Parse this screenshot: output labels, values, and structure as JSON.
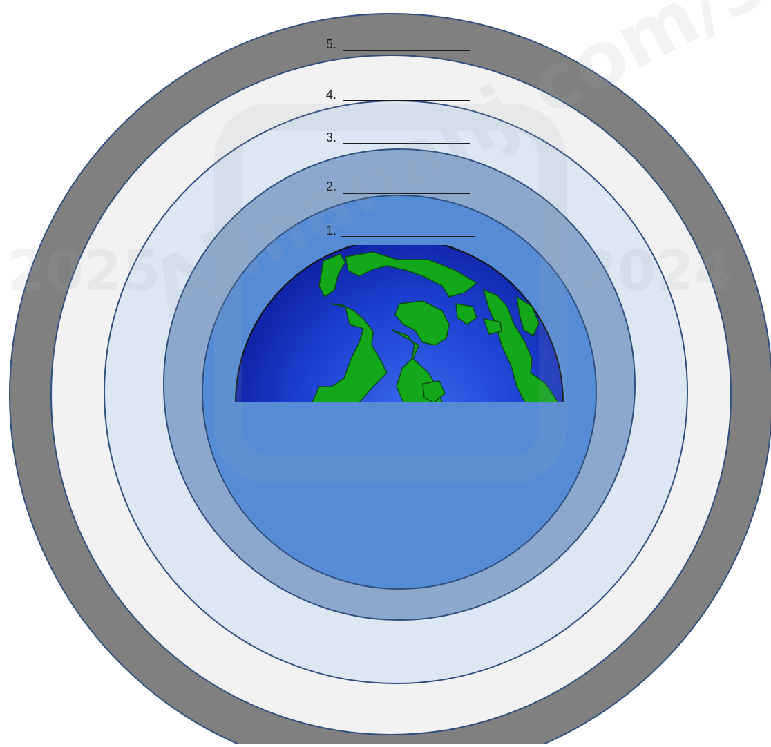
{
  "layers": [
    {
      "number": "1.",
      "blank": "________________",
      "fill": "#568cd6"
    },
    {
      "number": "2.",
      "blank": "_______________",
      "fill": "#8ca9cd"
    },
    {
      "number": "3.",
      "blank": "_______________",
      "fill": "#dde6f3"
    },
    {
      "number": "4.",
      "blank": "_______________",
      "fill": "#f2f2f2"
    },
    {
      "number": "5.",
      "blank": "_______________",
      "fill": "#808080"
    }
  ],
  "colors": {
    "outline": "#2f4f7f",
    "earth_ocean": "#1f3fd6",
    "earth_land": "#12a81a"
  },
  "watermark": {
    "text_main": "Almanahj.com/sa",
    "year_left": "2025",
    "year_right": "2024"
  }
}
